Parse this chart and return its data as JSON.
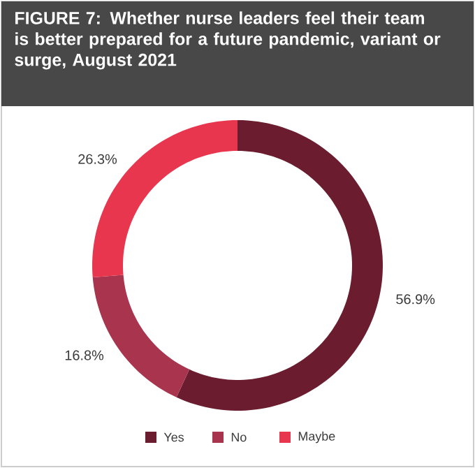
{
  "chart_data": {
    "type": "donut",
    "title": "**FIGURE 7:** Whether nurse leaders feel their team is better prepared for a future pandemic, variant or surge, August 2021",
    "categories": [
      "Yes",
      "No",
      "Maybe"
    ],
    "values": [
      56.9,
      16.8,
      26.3
    ],
    "value_labels": [
      "56.9%",
      "16.8%",
      "26.3%"
    ],
    "colors": [
      "#6b1d2f",
      "#a8344e",
      "#e9364f"
    ],
    "legend": "bottom"
  }
}
